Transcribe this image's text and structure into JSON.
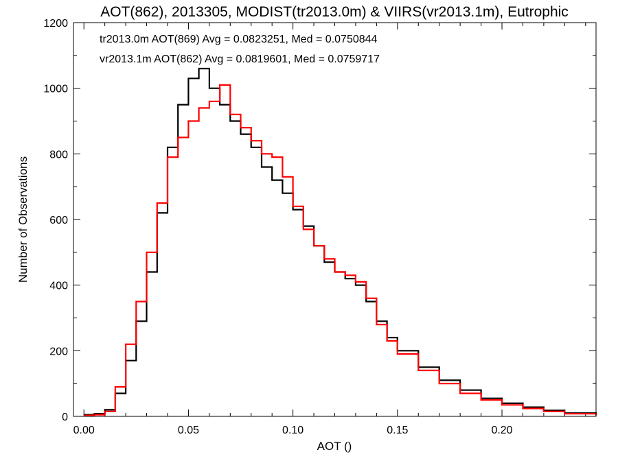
{
  "chart_data": {
    "type": "line",
    "title": "AOT(862), 2013305, MODIST(tr2013.0m) & VIIRS(vr2013.1m), Eutrophic",
    "xlabel": "AOT ()",
    "ylabel": "Number of Observations",
    "xlim": [
      -0.005,
      0.245
    ],
    "ylim": [
      0,
      1200
    ],
    "x_ticks": [
      0.0,
      0.05,
      0.1,
      0.15,
      0.2
    ],
    "x_tick_labels": [
      "0.00",
      "0.05",
      "0.10",
      "0.15",
      "0.20"
    ],
    "y_ticks": [
      0,
      200,
      400,
      600,
      800,
      1000,
      1200
    ],
    "y_tick_labels": [
      "0",
      "200",
      "400",
      "600",
      "800",
      "1000",
      "1200"
    ],
    "grid": false,
    "legend_position": "top-left",
    "annotations": [
      {
        "text": "tr2013.0m AOT(869) Avg = 0.0823251, Med = 0.0750844",
        "color": "#000000"
      },
      {
        "text": "vr2013.1m AOT(862) Avg = 0.0819601, Med = 0.0759717",
        "color": "#ff0000"
      }
    ],
    "series": [
      {
        "color": "#000000",
        "x": [
          0.0,
          0.005,
          0.01,
          0.015,
          0.02,
          0.025,
          0.03,
          0.035,
          0.04,
          0.045,
          0.05,
          0.055,
          0.06,
          0.065,
          0.07,
          0.075,
          0.08,
          0.085,
          0.09,
          0.095,
          0.1,
          0.105,
          0.11,
          0.115,
          0.12,
          0.125,
          0.13,
          0.135,
          0.14,
          0.145,
          0.15,
          0.16,
          0.17,
          0.18,
          0.19,
          0.2,
          0.21,
          0.22,
          0.23,
          0.245
        ],
        "y": [
          5,
          8,
          20,
          70,
          170,
          290,
          440,
          620,
          820,
          950,
          1030,
          1060,
          1000,
          950,
          900,
          860,
          820,
          760,
          720,
          680,
          630,
          580,
          520,
          470,
          440,
          420,
          400,
          350,
          290,
          240,
          200,
          150,
          110,
          80,
          55,
          40,
          28,
          18,
          10,
          4
        ]
      },
      {
        "color": "#ff0000",
        "x": [
          0.0,
          0.005,
          0.01,
          0.015,
          0.02,
          0.025,
          0.03,
          0.035,
          0.04,
          0.045,
          0.05,
          0.055,
          0.06,
          0.065,
          0.07,
          0.075,
          0.08,
          0.085,
          0.09,
          0.095,
          0.1,
          0.105,
          0.11,
          0.115,
          0.12,
          0.125,
          0.13,
          0.135,
          0.14,
          0.145,
          0.15,
          0.16,
          0.17,
          0.18,
          0.19,
          0.2,
          0.21,
          0.22,
          0.23,
          0.245
        ],
        "y": [
          3,
          5,
          15,
          90,
          220,
          350,
          500,
          650,
          790,
          850,
          900,
          940,
          960,
          1010,
          920,
          880,
          840,
          800,
          790,
          730,
          640,
          570,
          520,
          480,
          440,
          430,
          410,
          360,
          280,
          230,
          190,
          140,
          100,
          70,
          50,
          35,
          24,
          15,
          8,
          3
        ]
      }
    ]
  }
}
